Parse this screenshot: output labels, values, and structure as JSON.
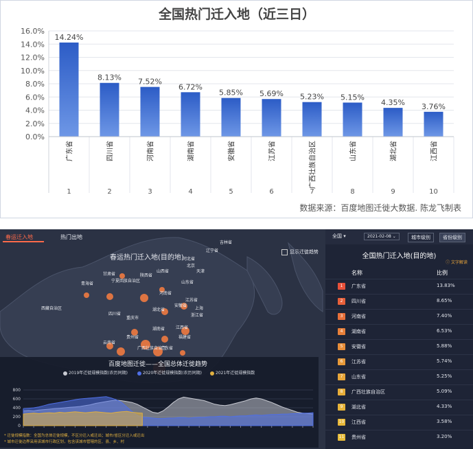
{
  "top_chart": {
    "title": "全国热门迁入地（近三日）",
    "credit": "数据来源：百度地图迁徙大数据. 陈龙飞制表"
  },
  "chart_data": [
    {
      "type": "bar",
      "title": "全国热门迁入地（近三日）",
      "categories": [
        "广东省",
        "四川省",
        "河南省",
        "湖南省",
        "安徽省",
        "江苏省",
        "广西壮族自治区",
        "山东省",
        "湖北省",
        "江西省"
      ],
      "x_ranks": [
        "1",
        "2",
        "3",
        "4",
        "5",
        "6",
        "7",
        "8",
        "9",
        "10"
      ],
      "values": [
        14.24,
        8.13,
        7.52,
        6.72,
        5.85,
        5.69,
        5.23,
        5.15,
        4.35,
        3.76
      ],
      "value_labels": [
        "14.24%",
        "8.13%",
        "7.52%",
        "6.72%",
        "5.85%",
        "5.69%",
        "5.23%",
        "5.15%",
        "4.35%",
        "3.76%"
      ],
      "ylim": [
        0,
        16
      ],
      "yticks": [
        "0.0%",
        "2.0%",
        "4.0%",
        "6.0%",
        "8.0%",
        "10.0%",
        "12.0%",
        "14.0%",
        "16.0%"
      ],
      "grid": true,
      "bar_color": "#3a66c8"
    },
    {
      "type": "area",
      "title": "百度地图迁徙——全国总体迁徙趋势",
      "ylim": [
        0,
        800
      ],
      "yticks": [
        "0",
        "200",
        "400",
        "600",
        "800"
      ],
      "series": [
        {
          "name": "2019年迁徙规模指数(农历同期)",
          "color": "#c9cbd3",
          "values": [
            330,
            340,
            330,
            350,
            360,
            370,
            380,
            390,
            400,
            410,
            420,
            430,
            450,
            470,
            500,
            520,
            540,
            560,
            570,
            560,
            540,
            520,
            480,
            420,
            360,
            300,
            280,
            330,
            420,
            520,
            600,
            640,
            620,
            600,
            580,
            560,
            520,
            480,
            460,
            450,
            470,
            500,
            530,
            560,
            600,
            620,
            600,
            560,
            520,
            470,
            420,
            380,
            340,
            300,
            280,
            270,
            260
          ]
        },
        {
          "name": "2020年迁徙规模指数(农历同期)",
          "color": "#4f6fe6",
          "values": [
            380,
            390,
            400,
            420,
            450,
            480,
            500,
            520,
            540,
            560,
            580,
            600,
            610,
            620,
            630,
            640,
            650,
            620,
            580,
            520,
            420,
            320,
            230,
            190,
            180,
            170,
            160,
            160,
            170,
            170,
            180,
            180,
            170,
            180,
            190,
            190,
            200,
            200,
            210,
            210,
            200,
            210,
            220,
            220,
            230,
            240,
            230,
            240,
            250,
            250,
            260,
            260,
            270,
            270,
            280,
            280,
            290
          ]
        },
        {
          "name": "2021年迁徙规模指数",
          "color": "#e0b040",
          "values": [
            260,
            270,
            280,
            270,
            280,
            290,
            280,
            300,
            290,
            300,
            310,
            300,
            290,
            300,
            310,
            300,
            290,
            280,
            300,
            310,
            320,
            300,
            290,
            280
          ]
        }
      ]
    }
  ],
  "dashboard": {
    "tabs": [
      "春运迁入地",
      "热门出地"
    ],
    "map_title": "春运热门迁入地(目的地)",
    "legend_label": "显示迁徙趋势",
    "cities": [
      "西藏自治区",
      "青海省",
      "甘肃省",
      "宁夏回族自治区",
      "陕西省",
      "山西省",
      "河北省",
      "北京",
      "天津",
      "山东省",
      "河南省",
      "江苏省",
      "安徽省",
      "上海",
      "湖北省",
      "浙江省",
      "四川省",
      "重庆市",
      "湖南省",
      "江西省",
      "贵州省",
      "福建省",
      "云南省",
      "广西壮族自治区",
      "广东省",
      "辽宁省",
      "吉林省"
    ],
    "trend_title": "百度地图迁徙——全国总体迁徙趋势",
    "trend_legend": [
      "2019年迁徙规模指数(农历同期)",
      "2020年迁徙规模指数(农历同期)",
      "2021年迁徙规模指数"
    ],
    "footnotes": [
      "* 迁徙规模指数：全国为总体迁徙规模，不区分迁入或迁出；城市/省区分迁入或迁出",
      "* 城市迁徙边界采用该城市行政区划，包含该城市管辖的区、县、乡、村"
    ],
    "panel": {
      "scope": "全国",
      "date": "2021-02-08",
      "btn_city": "城市级别",
      "btn_province": "省份级别",
      "title": "全国热门迁入地(目的地)",
      "link": "文字解读",
      "col_name": "名称",
      "col_ratio": "比例",
      "rows": [
        {
          "rank": "1",
          "name": "广东省",
          "value": "13.83%"
        },
        {
          "rank": "2",
          "name": "四川省",
          "value": "8.65%"
        },
        {
          "rank": "3",
          "name": "河南省",
          "value": "7.40%"
        },
        {
          "rank": "4",
          "name": "湖南省",
          "value": "6.53%"
        },
        {
          "rank": "5",
          "name": "安徽省",
          "value": "5.88%"
        },
        {
          "rank": "6",
          "name": "江苏省",
          "value": "5.74%"
        },
        {
          "rank": "7",
          "name": "山东省",
          "value": "5.25%"
        },
        {
          "rank": "8",
          "name": "广西壮族自治区",
          "value": "5.09%"
        },
        {
          "rank": "9",
          "name": "湖北省",
          "value": "4.33%"
        },
        {
          "rank": "10",
          "name": "江西省",
          "value": "3.58%"
        },
        {
          "rank": "11",
          "name": "贵州省",
          "value": "3.20%"
        }
      ],
      "rank_colors": [
        "#e8513a",
        "#e8603a",
        "#e8703a",
        "#e8803a",
        "#e88e3a",
        "#e89a3a",
        "#e8a63a",
        "#e8ae3a",
        "#e8b43a",
        "#e8b83a",
        "#e8bc3a"
      ]
    }
  }
}
